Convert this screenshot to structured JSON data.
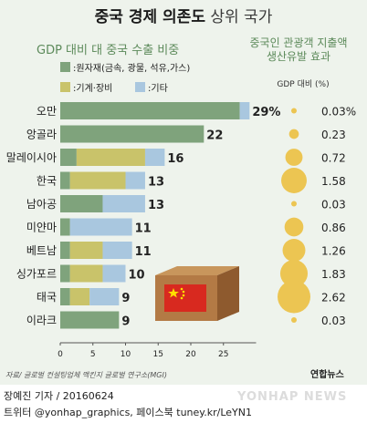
{
  "header": {
    "title_bold": "중국 경제 의존도",
    "title_light": "상위 국가",
    "left_subtitle": "GDP 대비 대 중국 수출 비중",
    "right_subtitle_line1": "중국인 관광객 지출액",
    "right_subtitle_line2": "생산유발 효과",
    "right_unit": "GDP 대비 (%)"
  },
  "legend": [
    {
      "label": ":원자재(금속, 광물, 석유,가스)",
      "color": "#7fa37c"
    },
    {
      "label": ":기계·장비",
      "color": "#c9c36a"
    },
    {
      "label": ":기타",
      "color": "#a9c7df"
    }
  ],
  "colors": {
    "panel_bg": "#eef3ec",
    "raw": "#7fa37c",
    "machine": "#c9c36a",
    "other": "#a9c7df",
    "bubble": "#ecc552",
    "dot_line": "#aaaaaa"
  },
  "chart_data": [
    {
      "type": "bar",
      "orientation": "horizontal",
      "stacked": true,
      "categories": [
        "오만",
        "앙골라",
        "말레이시아",
        "한국",
        "남아공",
        "미얀마",
        "베트남",
        "싱가포르",
        "태국",
        "이라크"
      ],
      "series": [
        {
          "name": ":원자재(금속, 광물, 석유,가스)",
          "values": [
            27.5,
            22,
            2.5,
            1.5,
            6.5,
            1.5,
            1.5,
            1.5,
            1.5,
            9
          ]
        },
        {
          "name": ":기계·장비",
          "values": [
            0,
            0,
            10.5,
            8.5,
            0,
            0,
            5,
            5,
            3,
            0
          ]
        },
        {
          "name": ":기타",
          "values": [
            1.5,
            0,
            3,
            3,
            6.5,
            9.5,
            4.5,
            3.5,
            4.5,
            0
          ]
        }
      ],
      "total_labels": [
        "29%",
        "22",
        "16",
        "13",
        "13",
        "11",
        "11",
        "10",
        "9",
        "9"
      ],
      "xticks": [
        "0",
        "5",
        "10",
        "15",
        "20",
        "25"
      ],
      "xlim": [
        0,
        30
      ]
    },
    {
      "type": "scatter",
      "encoding": "bubble size",
      "categories": [
        "오만",
        "앙골라",
        "말레이시아",
        "한국",
        "남아공",
        "미얀마",
        "베트남",
        "싱가포르",
        "태국",
        "이라크"
      ],
      "values": [
        0.03,
        0.23,
        0.72,
        1.58,
        0.03,
        0.86,
        1.26,
        1.83,
        2.62,
        0.03
      ],
      "value_labels": [
        "0.03%",
        "0.23",
        "0.72",
        "1.58",
        "0.03",
        "0.86",
        "1.26",
        "1.83",
        "2.62",
        "0.03"
      ]
    }
  ],
  "footer": {
    "source": "자료/ 글로벌 컨설팅업체 맥킨지 글로벌 연구소(MGI)",
    "logo": "연합뉴스",
    "watermark": "YONHAP NEWS",
    "byline": "장예진 기자 / 20160624",
    "social": "트위터 @yonhap_graphics, 페이스북 tuney.kr/LeYN1"
  }
}
